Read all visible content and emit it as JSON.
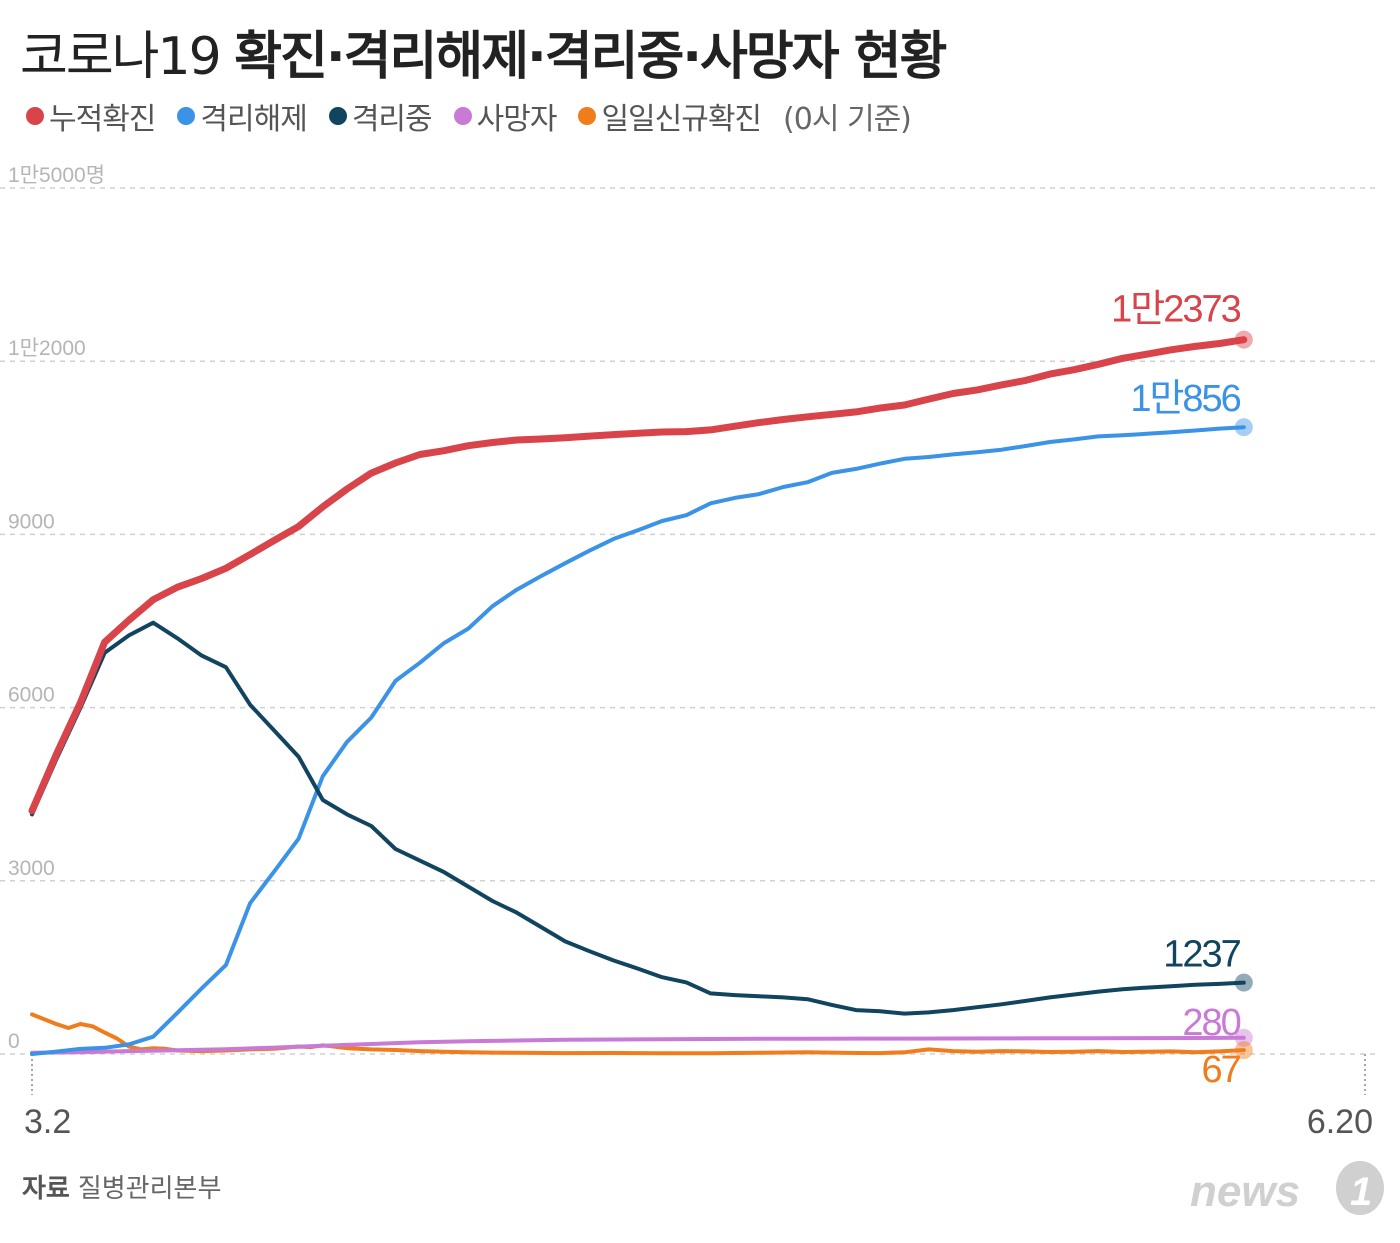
{
  "title": {
    "light": "코로나19",
    "bold": "확진·격리해제·격리중·사망자 현황"
  },
  "legend": {
    "items": [
      {
        "label": "누적확진",
        "color": "#d9434a"
      },
      {
        "label": "격리해제",
        "color": "#3a93e6"
      },
      {
        "label": "격리중",
        "color": "#10445f"
      },
      {
        "label": "사망자",
        "color": "#c97ad6"
      },
      {
        "label": "일일신규확진",
        "color": "#f07c1c"
      }
    ],
    "note": "(0시 기준)"
  },
  "footer": {
    "source_label": "자료",
    "source": "질병관리본부",
    "logo": "news1"
  },
  "chart_data": {
    "type": "line",
    "x_start_label": "3.2",
    "x_end_label": "6.20",
    "ylim": [
      0,
      15000
    ],
    "yticks": [
      0,
      3000,
      6000,
      9000,
      12000,
      15000
    ],
    "ytick_labels": [
      "0",
      "3000",
      "6000",
      "9000",
      "1만2000",
      "1만5000명"
    ],
    "grid": true,
    "x_index_range": [
      0,
      110
    ],
    "series": [
      {
        "name": "누적확진",
        "color": "#d9434a",
        "end_label": "1만2373",
        "points": [
          [
            0,
            4212
          ],
          [
            2,
            5186
          ],
          [
            4,
            6088
          ],
          [
            6,
            7134
          ],
          [
            8,
            7513
          ],
          [
            10,
            7869
          ],
          [
            12,
            8086
          ],
          [
            14,
            8236
          ],
          [
            16,
            8413
          ],
          [
            18,
            8652
          ],
          [
            20,
            8897
          ],
          [
            22,
            9137
          ],
          [
            24,
            9478
          ],
          [
            26,
            9786
          ],
          [
            28,
            10062
          ],
          [
            30,
            10237
          ],
          [
            32,
            10384
          ],
          [
            34,
            10450
          ],
          [
            36,
            10537
          ],
          [
            38,
            10591
          ],
          [
            40,
            10635
          ],
          [
            42,
            10653
          ],
          [
            44,
            10674
          ],
          [
            46,
            10702
          ],
          [
            48,
            10728
          ],
          [
            50,
            10752
          ],
          [
            52,
            10774
          ],
          [
            54,
            10780
          ],
          [
            56,
            10810
          ],
          [
            58,
            10874
          ],
          [
            60,
            10936
          ],
          [
            62,
            10991
          ],
          [
            64,
            11037
          ],
          [
            66,
            11078
          ],
          [
            68,
            11122
          ],
          [
            70,
            11190
          ],
          [
            72,
            11241
          ],
          [
            74,
            11344
          ],
          [
            76,
            11441
          ],
          [
            78,
            11503
          ],
          [
            80,
            11590
          ],
          [
            82,
            11668
          ],
          [
            84,
            11776
          ],
          [
            86,
            11852
          ],
          [
            88,
            11947
          ],
          [
            90,
            12051
          ],
          [
            92,
            12121
          ],
          [
            94,
            12198
          ],
          [
            96,
            12257
          ],
          [
            98,
            12306
          ],
          [
            100,
            12373
          ]
        ]
      },
      {
        "name": "격리해제",
        "color": "#3a93e6",
        "end_label": "1만856",
        "points": [
          [
            0,
            0
          ],
          [
            2,
            41
          ],
          [
            4,
            88
          ],
          [
            6,
            108
          ],
          [
            8,
            166
          ],
          [
            10,
            300
          ],
          [
            12,
            714
          ],
          [
            14,
            1137
          ],
          [
            16,
            1540
          ],
          [
            18,
            2612
          ],
          [
            20,
            3166
          ],
          [
            22,
            3730
          ],
          [
            24,
            4811
          ],
          [
            26,
            5408
          ],
          [
            28,
            5828
          ],
          [
            30,
            6463
          ],
          [
            32,
            6776
          ],
          [
            34,
            7117
          ],
          [
            36,
            7368
          ],
          [
            38,
            7757
          ],
          [
            40,
            8042
          ],
          [
            42,
            8277
          ],
          [
            44,
            8501
          ],
          [
            46,
            8717
          ],
          [
            48,
            8922
          ],
          [
            50,
            9072
          ],
          [
            52,
            9232
          ],
          [
            54,
            9333
          ],
          [
            56,
            9538
          ],
          [
            58,
            9632
          ],
          [
            60,
            9698
          ],
          [
            62,
            9821
          ],
          [
            64,
            9904
          ],
          [
            66,
            10066
          ],
          [
            68,
            10135
          ],
          [
            70,
            10226
          ],
          [
            72,
            10310
          ],
          [
            74,
            10340
          ],
          [
            76,
            10385
          ],
          [
            78,
            10422
          ],
          [
            80,
            10467
          ],
          [
            82,
            10531
          ],
          [
            84,
            10600
          ],
          [
            86,
            10646
          ],
          [
            88,
            10698
          ],
          [
            90,
            10718
          ],
          [
            92,
            10743
          ],
          [
            94,
            10770
          ],
          [
            96,
            10800
          ],
          [
            98,
            10832
          ],
          [
            100,
            10856
          ]
        ]
      },
      {
        "name": "격리중",
        "color": "#10445f",
        "end_label": "1237",
        "points": [
          [
            0,
            4150
          ],
          [
            2,
            5100
          ],
          [
            4,
            6000
          ],
          [
            6,
            6950
          ],
          [
            8,
            7250
          ],
          [
            10,
            7470
          ],
          [
            12,
            7200
          ],
          [
            14,
            6900
          ],
          [
            16,
            6700
          ],
          [
            18,
            6050
          ],
          [
            20,
            5600
          ],
          [
            22,
            5150
          ],
          [
            24,
            4400
          ],
          [
            26,
            4150
          ],
          [
            28,
            3950
          ],
          [
            30,
            3550
          ],
          [
            32,
            3350
          ],
          [
            34,
            3150
          ],
          [
            36,
            2900
          ],
          [
            38,
            2650
          ],
          [
            40,
            2450
          ],
          [
            42,
            2200
          ],
          [
            44,
            1950
          ],
          [
            46,
            1780
          ],
          [
            48,
            1620
          ],
          [
            50,
            1480
          ],
          [
            52,
            1330
          ],
          [
            54,
            1240
          ],
          [
            56,
            1050
          ],
          [
            58,
            1020
          ],
          [
            60,
            1000
          ],
          [
            62,
            980
          ],
          [
            64,
            950
          ],
          [
            66,
            850
          ],
          [
            68,
            760
          ],
          [
            70,
            740
          ],
          [
            72,
            700
          ],
          [
            74,
            720
          ],
          [
            76,
            760
          ],
          [
            78,
            810
          ],
          [
            80,
            860
          ],
          [
            82,
            920
          ],
          [
            84,
            980
          ],
          [
            86,
            1030
          ],
          [
            88,
            1080
          ],
          [
            90,
            1120
          ],
          [
            92,
            1150
          ],
          [
            94,
            1175
          ],
          [
            96,
            1200
          ],
          [
            98,
            1215
          ],
          [
            100,
            1237
          ]
        ]
      },
      {
        "name": "사망자",
        "color": "#c97ad6",
        "end_label": "280",
        "points": [
          [
            0,
            22
          ],
          [
            4,
            32
          ],
          [
            8,
            50
          ],
          [
            12,
            66
          ],
          [
            16,
            84
          ],
          [
            20,
            111
          ],
          [
            24,
            144
          ],
          [
            28,
            174
          ],
          [
            32,
            204
          ],
          [
            36,
            222
          ],
          [
            40,
            234
          ],
          [
            44,
            247
          ],
          [
            48,
            252
          ],
          [
            52,
            256
          ],
          [
            56,
            260
          ],
          [
            60,
            263
          ],
          [
            64,
            264
          ],
          [
            68,
            266
          ],
          [
            72,
            267
          ],
          [
            76,
            269
          ],
          [
            80,
            270
          ],
          [
            84,
            272
          ],
          [
            88,
            273
          ],
          [
            92,
            276
          ],
          [
            96,
            278
          ],
          [
            100,
            280
          ]
        ]
      },
      {
        "name": "일일신규확진",
        "color": "#f07c1c",
        "end_label": "67",
        "points": [
          [
            0,
            686
          ],
          [
            2,
            520
          ],
          [
            3,
            450
          ],
          [
            4,
            520
          ],
          [
            5,
            480
          ],
          [
            6,
            370
          ],
          [
            7,
            270
          ],
          [
            8,
            130
          ],
          [
            9,
            80
          ],
          [
            10,
            100
          ],
          [
            11,
            90
          ],
          [
            12,
            60
          ],
          [
            14,
            50
          ],
          [
            16,
            60
          ],
          [
            18,
            80
          ],
          [
            20,
            90
          ],
          [
            21,
            110
          ],
          [
            22,
            130
          ],
          [
            23,
            120
          ],
          [
            24,
            150
          ],
          [
            26,
            100
          ],
          [
            28,
            80
          ],
          [
            30,
            70
          ],
          [
            32,
            50
          ],
          [
            34,
            40
          ],
          [
            36,
            30
          ],
          [
            38,
            25
          ],
          [
            40,
            20
          ],
          [
            44,
            15
          ],
          [
            48,
            18
          ],
          [
            52,
            14
          ],
          [
            56,
            12
          ],
          [
            60,
            20
          ],
          [
            64,
            30
          ],
          [
            68,
            18
          ],
          [
            70,
            15
          ],
          [
            72,
            30
          ],
          [
            74,
            80
          ],
          [
            76,
            50
          ],
          [
            78,
            40
          ],
          [
            80,
            50
          ],
          [
            82,
            45
          ],
          [
            84,
            35
          ],
          [
            86,
            40
          ],
          [
            88,
            50
          ],
          [
            90,
            35
          ],
          [
            92,
            40
          ],
          [
            94,
            45
          ],
          [
            96,
            30
          ],
          [
            98,
            45
          ],
          [
            100,
            67
          ]
        ]
      }
    ]
  }
}
